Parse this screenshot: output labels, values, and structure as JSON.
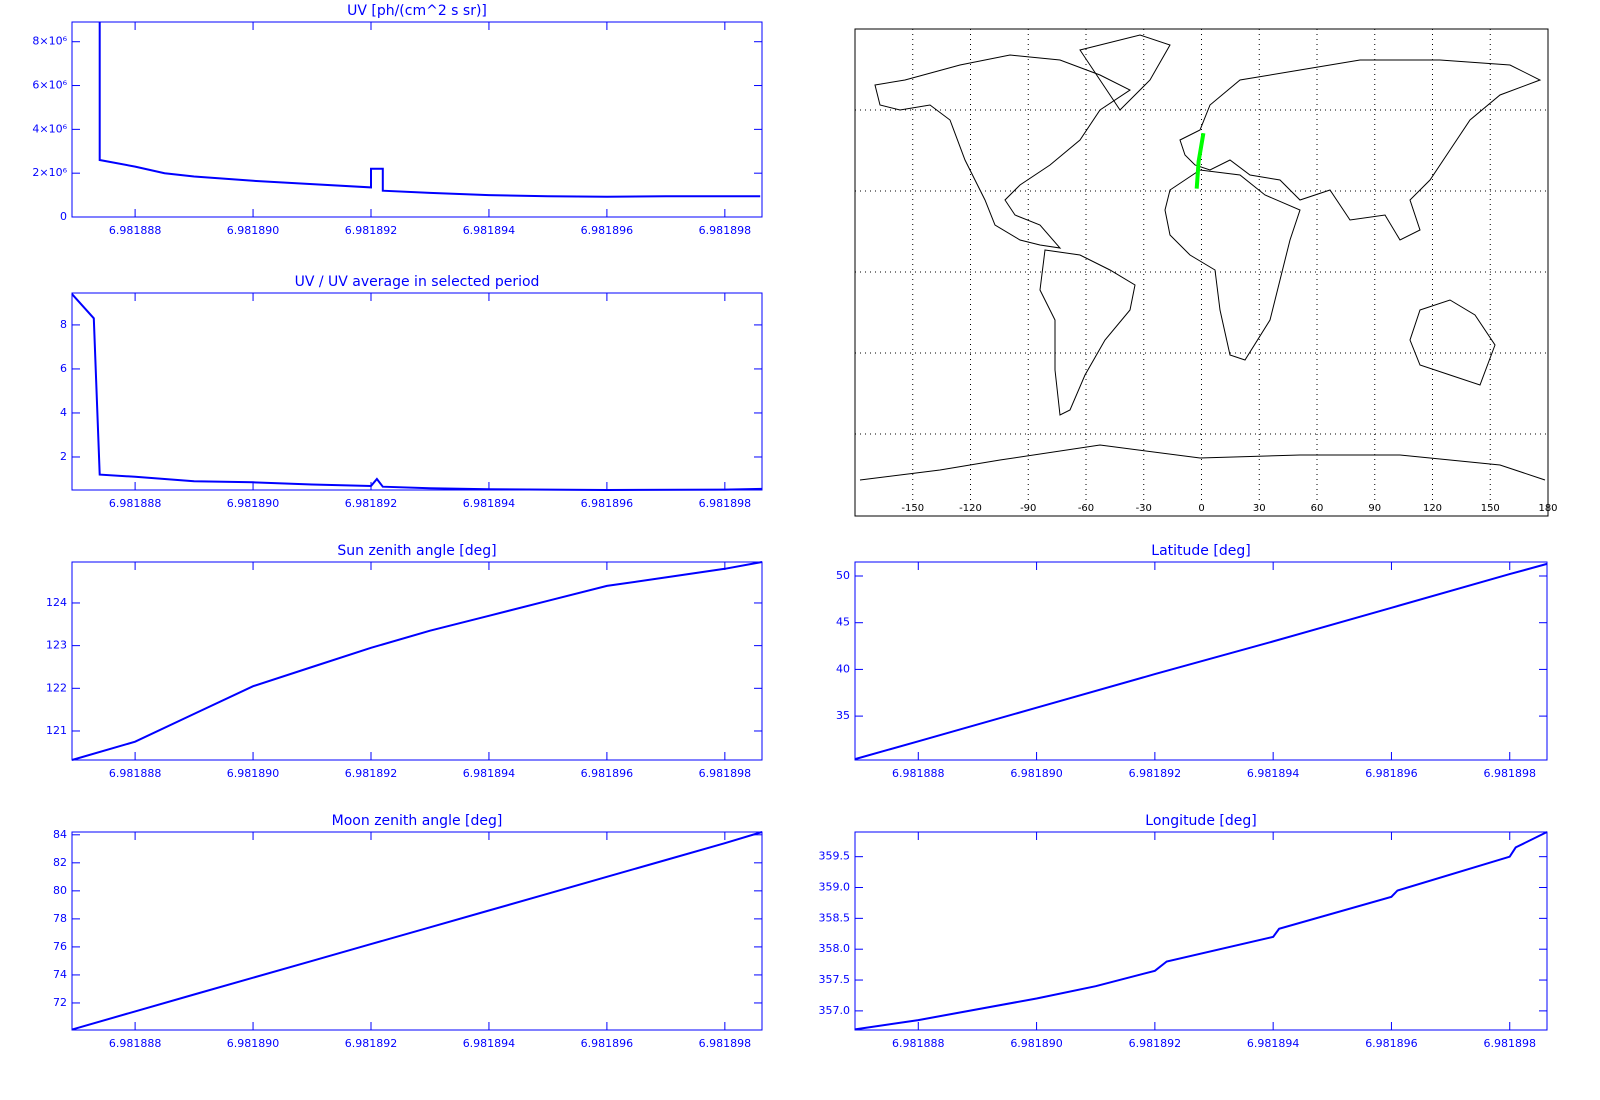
{
  "chart_data": [
    {
      "type": "line",
      "title": "UV [ph/(cm^2 s sr)]",
      "color": "#0000ff",
      "x": [
        6.9818874,
        6.9818874,
        6.981888,
        6.9818885,
        6.981889,
        6.98189,
        6.981891,
        6.981892,
        6.981892,
        6.9818922,
        6.9818922,
        6.981893,
        6.981894,
        6.981895,
        6.981896,
        6.981897,
        6.981898,
        6.9818986
      ],
      "values": [
        8900000,
        2600000,
        2300000,
        2000000,
        1850000,
        1650000,
        1500000,
        1350000,
        2200000,
        2200000,
        1200000,
        1100000,
        1000000,
        950000,
        920000,
        950000,
        950000,
        950000
      ],
      "xlim": [
        6.98188693,
        6.98189863
      ],
      "xticks": [
        {
          "value": 6.981888,
          "label": "6.981888"
        },
        {
          "value": 6.98189,
          "label": "6.981890"
        },
        {
          "value": 6.981892,
          "label": "6.981892"
        },
        {
          "value": 6.981894,
          "label": "6.981894"
        },
        {
          "value": 6.981896,
          "label": "6.981896"
        },
        {
          "value": 6.981898,
          "label": "6.981898"
        }
      ],
      "ylim": [
        0,
        8900000
      ],
      "yticks": [
        0,
        {
          "value": 2000000,
          "label": "2×10⁶"
        },
        {
          "value": 4000000,
          "label": "4×10⁶"
        },
        {
          "value": 6000000,
          "label": "6×10⁶"
        },
        {
          "value": 8000000,
          "label": "8×10⁶"
        }
      ]
    },
    {
      "type": "line",
      "title": "UV / UV average in selected period",
      "color": "#0000ff",
      "x": [
        6.98188693,
        6.9818873,
        6.9818874,
        6.981888,
        6.981889,
        6.98189,
        6.981891,
        6.981892,
        6.9818921,
        6.9818922,
        6.981893,
        6.981894,
        6.981896,
        6.981898,
        6.98189863
      ],
      "values": [
        9.4,
        8.3,
        1.2,
        1.1,
        0.9,
        0.85,
        0.75,
        0.68,
        1.0,
        0.65,
        0.58,
        0.53,
        0.5,
        0.52,
        0.55
      ],
      "xlim": [
        6.98188693,
        6.98189863
      ],
      "xticks": [
        {
          "value": 6.981888,
          "label": "6.981888"
        },
        {
          "value": 6.98189,
          "label": "6.981890"
        },
        {
          "value": 6.981892,
          "label": "6.981892"
        },
        {
          "value": 6.981894,
          "label": "6.981894"
        },
        {
          "value": 6.981896,
          "label": "6.981896"
        },
        {
          "value": 6.981898,
          "label": "6.981898"
        }
      ],
      "ylim": [
        0.5,
        9.45
      ],
      "yticks": [
        2,
        4,
        6,
        8
      ]
    },
    {
      "type": "map",
      "color": "#00ff00",
      "x": [
        -2.5,
        -1.5,
        1
      ],
      "values": [
        31,
        41,
        51.5
      ],
      "xlim": [
        -180,
        180
      ],
      "ylim": [
        -90,
        90
      ],
      "xticks": [
        -150,
        -120,
        -90,
        -60,
        -30,
        0,
        30,
        60,
        90,
        120,
        150,
        180
      ],
      "grid": true
    },
    {
      "type": "line",
      "title": "Sun zenith angle [deg]",
      "color": "#0000ff",
      "x": [
        6.98188693,
        6.981888,
        6.981889,
        6.98189,
        6.981891,
        6.981892,
        6.981893,
        6.981894,
        6.981895,
        6.981896,
        6.981897,
        6.981898,
        6.98189863
      ],
      "values": [
        120.32,
        120.75,
        121.4,
        122.05,
        122.5,
        122.95,
        123.35,
        123.7,
        124.05,
        124.4,
        124.6,
        124.8,
        124.96
      ],
      "xlim": [
        6.98188693,
        6.98189863
      ],
      "xticks": [
        {
          "value": 6.981888,
          "label": "6.981888"
        },
        {
          "value": 6.98189,
          "label": "6.981890"
        },
        {
          "value": 6.981892,
          "label": "6.981892"
        },
        {
          "value": 6.981894,
          "label": "6.981894"
        },
        {
          "value": 6.981896,
          "label": "6.981896"
        },
        {
          "value": 6.981898,
          "label": "6.981898"
        }
      ],
      "ylim": [
        120.32,
        124.96
      ],
      "yticks": [
        121,
        122,
        123,
        124
      ]
    },
    {
      "type": "line",
      "title": "Latitude [deg]",
      "color": "#0000ff",
      "x": [
        6.98188693,
        6.981888,
        6.98189,
        6.981892,
        6.981894,
        6.981896,
        6.981898,
        6.98189863
      ],
      "values": [
        30.4,
        32.3,
        35.9,
        39.5,
        43.0,
        46.6,
        50.2,
        51.3
      ],
      "xlim": [
        6.98188693,
        6.98189863
      ],
      "xticks": [
        {
          "value": 6.981888,
          "label": "6.981888"
        },
        {
          "value": 6.98189,
          "label": "6.981890"
        },
        {
          "value": 6.981892,
          "label": "6.981892"
        },
        {
          "value": 6.981894,
          "label": "6.981894"
        },
        {
          "value": 6.981896,
          "label": "6.981896"
        },
        {
          "value": 6.981898,
          "label": "6.981898"
        }
      ],
      "ylim": [
        30.3,
        51.5
      ],
      "yticks": [
        35,
        40,
        45,
        50
      ]
    },
    {
      "type": "line",
      "title": "Moon zenith angle [deg]",
      "color": "#0000ff",
      "x": [
        6.98188693,
        6.981888,
        6.981889,
        6.98189,
        6.981891,
        6.981892,
        6.981893,
        6.981894,
        6.981895,
        6.981896,
        6.981897,
        6.981898,
        6.98189863
      ],
      "values": [
        70.1,
        71.4,
        72.6,
        73.8,
        75.0,
        76.2,
        77.4,
        78.6,
        79.8,
        81.0,
        82.2,
        83.4,
        84.2
      ],
      "xlim": [
        6.98188693,
        6.98189863
      ],
      "xticks": [
        {
          "value": 6.981888,
          "label": "6.981888"
        },
        {
          "value": 6.98189,
          "label": "6.981890"
        },
        {
          "value": 6.981892,
          "label": "6.981892"
        },
        {
          "value": 6.981894,
          "label": "6.981894"
        },
        {
          "value": 6.981896,
          "label": "6.981896"
        },
        {
          "value": 6.981898,
          "label": "6.981898"
        }
      ],
      "ylim": [
        70.07,
        84.2
      ],
      "yticks": [
        72,
        74,
        76,
        78,
        80,
        82,
        84
      ]
    },
    {
      "type": "line",
      "title": "Longitude [deg]",
      "color": "#0000ff",
      "x": [
        6.98188693,
        6.981888,
        6.98189,
        6.981891,
        6.981892,
        6.9818922,
        6.981894,
        6.9818941,
        6.981896,
        6.9818961,
        6.981898,
        6.9818981,
        6.98189863
      ],
      "values": [
        356.7,
        356.85,
        357.2,
        357.4,
        357.65,
        357.8,
        358.2,
        358.33,
        358.85,
        358.95,
        359.5,
        359.65,
        359.9
      ],
      "xlim": [
        6.98188693,
        6.98189863
      ],
      "xticks": [
        {
          "value": 6.981888,
          "label": "6.981888"
        },
        {
          "value": 6.98189,
          "label": "6.981890"
        },
        {
          "value": 6.981892,
          "label": "6.981892"
        },
        {
          "value": 6.981894,
          "label": "6.981894"
        },
        {
          "value": 6.981896,
          "label": "6.981896"
        },
        {
          "value": 6.981898,
          "label": "6.981898"
        }
      ],
      "ylim": [
        356.69,
        359.9
      ],
      "yticks": [
        {
          "value": 357,
          "label": "357.0"
        },
        357.5,
        {
          "value": 358,
          "label": "358.0"
        },
        358.5,
        {
          "value": 359,
          "label": "359.0"
        },
        359.5
      ]
    }
  ]
}
